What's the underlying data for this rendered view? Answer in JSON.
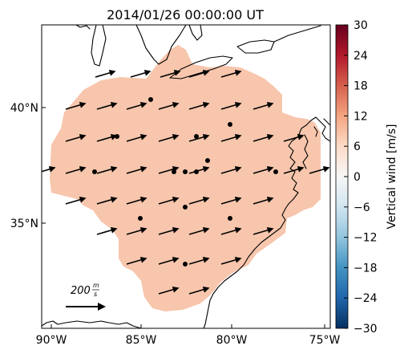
{
  "title": "2014/01/26 00:00:00 UT",
  "lon_labels": [
    "90°W",
    "85°W",
    "80°W",
    "75°W"
  ],
  "lat_labels": [
    "40°N",
    "35°N"
  ],
  "scale": {
    "label": "200 m/s",
    "numerator": "m",
    "denominator": "s",
    "value": 200
  },
  "colorbar": {
    "label": "Vertical wind [m/s]",
    "ticks": [
      "30",
      "24",
      "18",
      "12",
      "6",
      "0",
      "−6",
      "−12",
      "−18",
      "−24",
      "−30"
    ],
    "min": -30,
    "max": 30,
    "colors": [
      "#053061",
      "#2166ac",
      "#4393c3",
      "#92c5de",
      "#d1e5f0",
      "#f7f7f7",
      "#fddbc7",
      "#f4a582",
      "#d6604d",
      "#b2182b",
      "#67001f"
    ]
  },
  "coverage_fill": "#f7c6ad"
}
